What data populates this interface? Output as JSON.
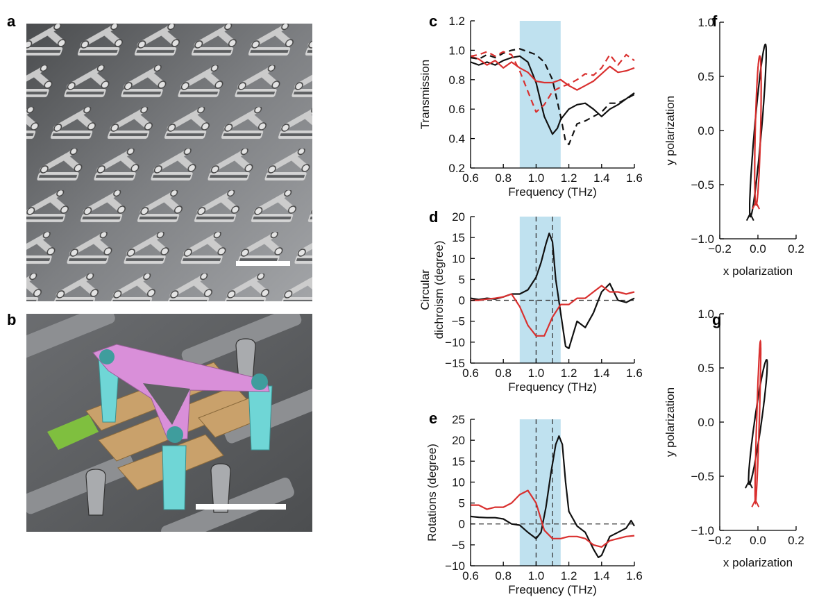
{
  "panels": {
    "a": "a",
    "b": "b",
    "c": "c",
    "d": "d",
    "e": "e",
    "f": "f",
    "g": "g"
  },
  "colors": {
    "black": "#111111",
    "red": "#d9302f",
    "shade": "#bfe1ef",
    "sem_bg": "#5e6062",
    "sem_metal": "#c9c9c9",
    "pink": "#d98fd9",
    "cyan": "#6fd6d6",
    "gold": "#c9a16b",
    "green": "#7fbf3f"
  },
  "chart_data": [
    {
      "id": "c",
      "type": "line",
      "xlabel": "Frequency (THz)",
      "ylabel": "Transmission",
      "xlim": [
        0.6,
        1.6
      ],
      "ylim": [
        0.2,
        1.2
      ],
      "xticks": [
        "0.6",
        "0.8",
        "1.0",
        "1.2",
        "1.4",
        "1.6"
      ],
      "yticks": [
        "0.2",
        "0.4",
        "0.6",
        "0.8",
        "1.0",
        "1.2"
      ],
      "shaded_band": [
        0.9,
        1.15
      ],
      "series": [
        {
          "style": "solid",
          "color": "black",
          "x": [
            0.6,
            0.65,
            0.7,
            0.75,
            0.8,
            0.85,
            0.9,
            0.95,
            1.0,
            1.05,
            1.1,
            1.13,
            1.15,
            1.2,
            1.25,
            1.3,
            1.35,
            1.4,
            1.45,
            1.5,
            1.55,
            1.6
          ],
          "y": [
            0.92,
            0.9,
            0.92,
            0.9,
            0.93,
            0.95,
            0.96,
            0.92,
            0.78,
            0.55,
            0.43,
            0.47,
            0.53,
            0.6,
            0.63,
            0.64,
            0.6,
            0.55,
            0.6,
            0.63,
            0.67,
            0.71
          ]
        },
        {
          "style": "solid",
          "color": "red",
          "x": [
            0.6,
            0.65,
            0.7,
            0.75,
            0.8,
            0.85,
            0.9,
            0.95,
            1.0,
            1.05,
            1.1,
            1.15,
            1.2,
            1.25,
            1.3,
            1.35,
            1.4,
            1.45,
            1.5,
            1.55,
            1.6
          ],
          "y": [
            0.96,
            0.94,
            0.9,
            0.93,
            0.88,
            0.92,
            0.88,
            0.85,
            0.79,
            0.78,
            0.78,
            0.8,
            0.76,
            0.73,
            0.76,
            0.79,
            0.84,
            0.89,
            0.85,
            0.86,
            0.88
          ]
        },
        {
          "style": "dashed",
          "color": "black",
          "x": [
            0.6,
            0.65,
            0.7,
            0.75,
            0.8,
            0.85,
            0.9,
            0.95,
            1.0,
            1.05,
            1.1,
            1.15,
            1.18,
            1.2,
            1.25,
            1.3,
            1.35,
            1.4,
            1.45,
            1.5,
            1.55,
            1.6
          ],
          "y": [
            0.95,
            0.94,
            0.97,
            0.95,
            0.98,
            1.0,
            1.01,
            0.99,
            0.97,
            0.92,
            0.8,
            0.55,
            0.38,
            0.36,
            0.5,
            0.52,
            0.55,
            0.58,
            0.64,
            0.64,
            0.67,
            0.7
          ]
        },
        {
          "style": "dashed",
          "color": "red",
          "x": [
            0.6,
            0.65,
            0.7,
            0.75,
            0.8,
            0.85,
            0.9,
            0.95,
            1.0,
            1.05,
            1.1,
            1.15,
            1.2,
            1.25,
            1.3,
            1.35,
            1.4,
            1.45,
            1.5,
            1.55,
            1.6
          ],
          "y": [
            0.96,
            0.97,
            0.99,
            0.96,
            0.99,
            0.97,
            0.86,
            0.72,
            0.58,
            0.63,
            0.72,
            0.75,
            0.77,
            0.8,
            0.84,
            0.83,
            0.88,
            0.97,
            0.9,
            0.97,
            0.93
          ]
        }
      ]
    },
    {
      "id": "d",
      "type": "line",
      "xlabel": "Frequency (THz)",
      "ylabel_line1": "Circular",
      "ylabel_line2": "dichroism (degree)",
      "xlim": [
        0.6,
        1.6
      ],
      "ylim": [
        -15,
        20
      ],
      "xticks": [
        "0.6",
        "0.8",
        "1.0",
        "1.2",
        "1.4",
        "1.6"
      ],
      "yticks": [
        "-15",
        "-10",
        "-5",
        "0",
        "5",
        "10",
        "15",
        "20"
      ],
      "shaded_band": [
        0.9,
        1.15
      ],
      "vlines": [
        1.0,
        1.1
      ],
      "hline": 0,
      "series": [
        {
          "style": "solid",
          "color": "black",
          "x": [
            0.6,
            0.65,
            0.7,
            0.75,
            0.8,
            0.85,
            0.9,
            0.95,
            1.0,
            1.03,
            1.06,
            1.08,
            1.1,
            1.12,
            1.15,
            1.18,
            1.2,
            1.25,
            1.3,
            1.35,
            1.4,
            1.45,
            1.5,
            1.55,
            1.6
          ],
          "y": [
            0.5,
            0.2,
            0.5,
            0.3,
            0.8,
            1.5,
            1.5,
            2.5,
            5.5,
            9,
            13.5,
            16,
            14,
            5,
            -3,
            -11,
            -11.5,
            -5,
            -6.5,
            -3,
            2,
            4,
            0,
            -0.5,
            0.5
          ]
        },
        {
          "style": "solid",
          "color": "red",
          "x": [
            0.6,
            0.65,
            0.7,
            0.75,
            0.8,
            0.85,
            0.9,
            0.95,
            1.0,
            1.05,
            1.1,
            1.15,
            1.2,
            1.25,
            1.3,
            1.35,
            1.4,
            1.45,
            1.5,
            1.55,
            1.6
          ],
          "y": [
            0,
            0,
            0.3,
            0.5,
            0.8,
            1.5,
            -1.5,
            -6,
            -8.5,
            -8.5,
            -4,
            -1,
            -1,
            0.5,
            0.5,
            2,
            3.5,
            2,
            2,
            1.5,
            2
          ]
        }
      ]
    },
    {
      "id": "e",
      "type": "line",
      "xlabel": "Frequency (THz)",
      "ylabel": "Rotations (degree)",
      "xlim": [
        0.6,
        1.6
      ],
      "ylim": [
        -10,
        25
      ],
      "xticks": [
        "0.6",
        "0.8",
        "1.0",
        "1.2",
        "1.4",
        "1.6"
      ],
      "yticks": [
        "-10",
        "-5",
        "0",
        "5",
        "10",
        "15",
        "20",
        "25"
      ],
      "shaded_band": [
        0.9,
        1.15
      ],
      "vlines": [
        1.0,
        1.1
      ],
      "hline": 0,
      "series": [
        {
          "style": "solid",
          "color": "black",
          "x": [
            0.6,
            0.65,
            0.7,
            0.75,
            0.8,
            0.85,
            0.9,
            0.95,
            1.0,
            1.03,
            1.06,
            1.09,
            1.12,
            1.14,
            1.16,
            1.18,
            1.2,
            1.25,
            1.3,
            1.35,
            1.38,
            1.4,
            1.45,
            1.5,
            1.55,
            1.58,
            1.6
          ],
          "y": [
            1.8,
            1.6,
            1.5,
            1.5,
            1.2,
            0,
            -0.3,
            -2,
            -3.5,
            -2,
            4,
            12,
            19,
            21,
            19,
            10,
            3,
            -0.5,
            -2,
            -6,
            -8,
            -7.5,
            -3,
            -2,
            -1,
            0.8,
            -0.5
          ]
        },
        {
          "style": "solid",
          "color": "red",
          "x": [
            0.6,
            0.65,
            0.7,
            0.75,
            0.8,
            0.85,
            0.9,
            0.95,
            1.0,
            1.05,
            1.1,
            1.15,
            1.2,
            1.25,
            1.3,
            1.35,
            1.4,
            1.45,
            1.5,
            1.55,
            1.6
          ],
          "y": [
            4.5,
            4.5,
            3.5,
            4,
            4,
            5,
            7,
            8,
            5,
            -1.5,
            -3.5,
            -3.5,
            -3,
            -3,
            -3.5,
            -5,
            -5.5,
            -4,
            -3.5,
            -3,
            -2.8
          ]
        }
      ]
    },
    {
      "id": "f",
      "type": "line",
      "xlabel": "x polarization",
      "ylabel": "y polarization",
      "xlim": [
        -0.2,
        0.2
      ],
      "ylim": [
        -1.0,
        1.0
      ],
      "xticks": [
        "-0.2",
        "0.0",
        "0.2"
      ],
      "yticks": [
        "-1.0",
        "-0.5",
        "0.0",
        "0.5",
        "1.0"
      ],
      "ellipses": [
        {
          "color": "black",
          "a": 0.82,
          "b": 0.09,
          "tilt_deg": 76,
          "center": [
            0,
            0
          ]
        },
        {
          "color": "red",
          "a": 0.69,
          "b": 0.07,
          "tilt_deg": 86,
          "center": [
            0.0,
            0.0
          ]
        }
      ]
    },
    {
      "id": "g",
      "type": "line",
      "xlabel": "x polarization",
      "ylabel": "y polarization",
      "xlim": [
        -0.2,
        0.2
      ],
      "ylim": [
        -1.0,
        1.0
      ],
      "xticks": [
        "-0.2",
        "0.0",
        "0.2"
      ],
      "yticks": [
        "-1.0",
        "-0.5",
        "0.0",
        "0.5",
        "1.0"
      ],
      "ellipses": [
        {
          "color": "black",
          "a": 0.62,
          "b": 0.085,
          "tilt_deg": 68,
          "center": [
            0,
            0
          ]
        },
        {
          "color": "red",
          "a": 0.75,
          "b": 0.035,
          "tilt_deg": 85,
          "center": [
            0.0,
            0.0
          ]
        }
      ]
    }
  ]
}
